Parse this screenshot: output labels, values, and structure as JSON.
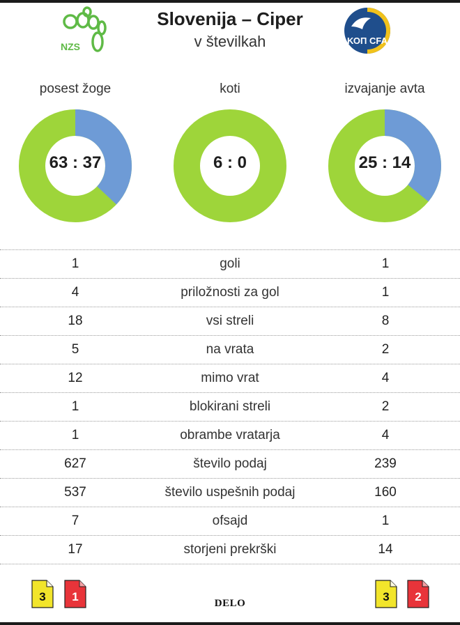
{
  "header": {
    "title": "Slovenija – Ciper",
    "subtitle": "v številkah",
    "home_logo_text": "NZS",
    "away_logo_text": "ΚΟΠ CFA"
  },
  "colors": {
    "home": "#9ed53a",
    "away": "#6e9bd6",
    "yellow_card": "#f2e52b",
    "red_card": "#e8343a"
  },
  "donuts": [
    {
      "label": "posest žoge",
      "value_text": "63 : 37",
      "home": 63,
      "away": 37
    },
    {
      "label": "koti",
      "value_text": "6 : 0",
      "home": 6,
      "away": 0
    },
    {
      "label": "izvajanje avta",
      "value_text": "25 : 14",
      "home": 25,
      "away": 14
    }
  ],
  "stats": [
    {
      "home": "1",
      "label": "goli",
      "away": "1"
    },
    {
      "home": "4",
      "label": "priložnosti za gol",
      "away": "1"
    },
    {
      "home": "18",
      "label": "vsi streli",
      "away": "8"
    },
    {
      "home": "5",
      "label": "na vrata",
      "away": "2"
    },
    {
      "home": "12",
      "label": "mimo vrat",
      "away": "4"
    },
    {
      "home": "1",
      "label": "blokirani streli",
      "away": "2"
    },
    {
      "home": "1",
      "label": "obrambe vratarja",
      "away": "4"
    },
    {
      "home": "627",
      "label": "število podaj",
      "away": "239"
    },
    {
      "home": "537",
      "label": "število uspešnih podaj",
      "away": "160"
    },
    {
      "home": "7",
      "label": "ofsajd",
      "away": "1"
    },
    {
      "home": "17",
      "label": "storjeni prekrški",
      "away": "14"
    }
  ],
  "cards": {
    "home_yellow": "3",
    "home_red": "1",
    "away_yellow": "3",
    "away_red": "2"
  },
  "brand": "DELO"
}
